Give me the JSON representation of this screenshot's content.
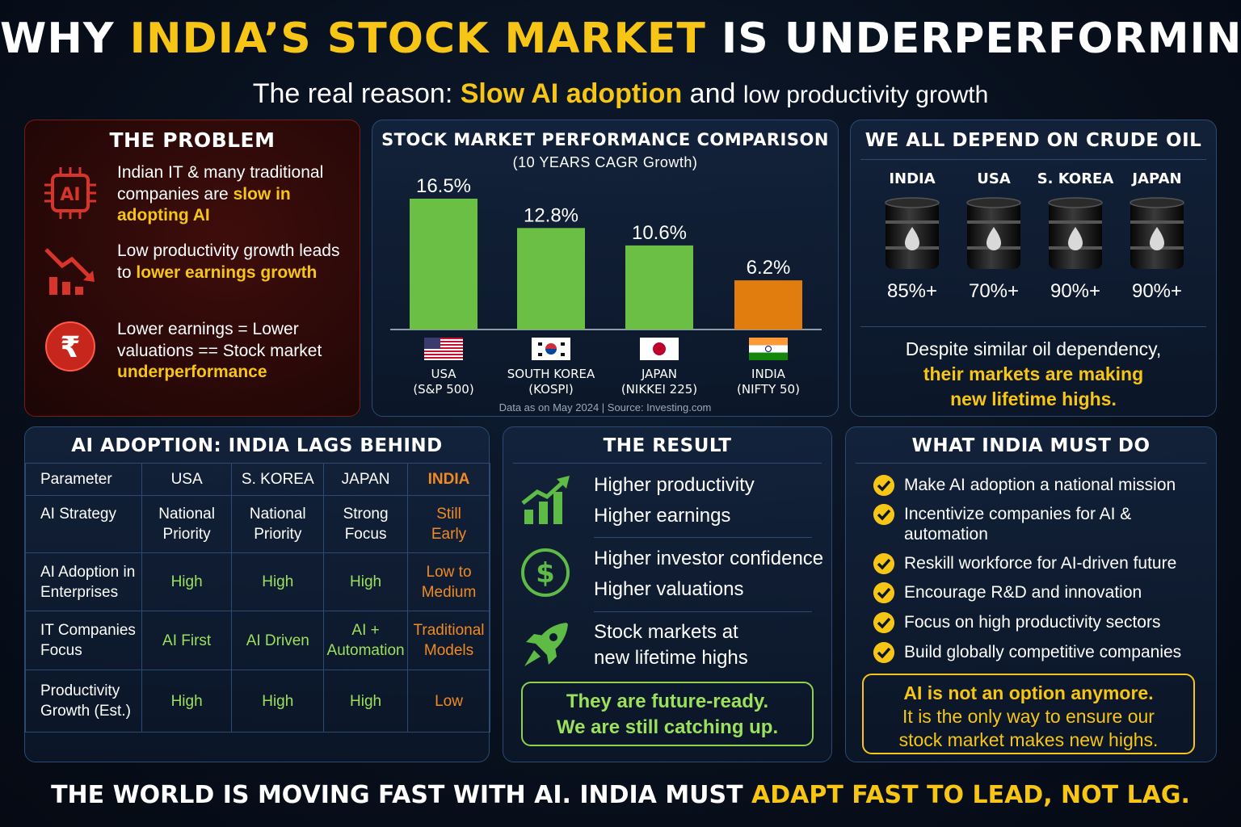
{
  "header": {
    "title_part1": "WHY ",
    "title_highlight": "INDIA’S STOCK MARKET",
    "title_part2": " IS UNDERPERFORMING?",
    "subtitle_part1": "The real reason: ",
    "subtitle_highlight": "Slow AI adoption",
    "subtitle_part2": " and ",
    "subtitle_part3": "low productivity growth"
  },
  "problem": {
    "title": "THE PROBLEM",
    "items": [
      {
        "icon": "ai-chip-icon",
        "text": "Indian IT & many traditional companies are ",
        "highlight": "slow in adopting AI"
      },
      {
        "icon": "declining-chart-icon",
        "text": "Low productivity growth leads to ",
        "highlight": "lower earnings growth"
      },
      {
        "icon": "rupee-icon",
        "text": "Lower earnings = Lower valuations == Stock market ",
        "highlight": "underperformance"
      }
    ]
  },
  "chart_data": {
    "type": "bar",
    "title": "STOCK MARKET PERFORMANCE COMPARISON",
    "subtitle": "(10 YEARS CAGR Growth)",
    "categories": [
      "USA",
      "SOUTH KOREA",
      "JAPAN",
      "INDIA"
    ],
    "category_sublabels": [
      "(S&P 500)",
      "(KOSPI)",
      "(NIKKEI 225)",
      "(NIFTY 50)"
    ],
    "values": [
      16.5,
      12.8,
      10.6,
      6.2
    ],
    "value_labels": [
      "16.5%",
      "12.8%",
      "10.6%",
      "6.2%"
    ],
    "bar_colors": [
      "#6cbf45",
      "#6cbf45",
      "#6cbf45",
      "#e07d0e"
    ],
    "flags": [
      "usa-flag-icon",
      "south-korea-flag-icon",
      "japan-flag-icon",
      "india-flag-icon"
    ],
    "ylim": [
      0,
      16.5
    ],
    "grid": false,
    "source": "Data as on May 2024 | Source: Investing.com"
  },
  "oil": {
    "title": "WE ALL DEPEND ON CRUDE OIL",
    "countries": [
      {
        "name": "INDIA",
        "value": "85%+"
      },
      {
        "name": "USA",
        "value": "70%+"
      },
      {
        "name": "S. KOREA",
        "value": "90%+"
      },
      {
        "name": "JAPAN",
        "value": "90%+"
      }
    ],
    "note_line1": "Despite similar oil dependency,",
    "note_highlight_line1": "their markets are making",
    "note_highlight_line2": "new lifetime highs."
  },
  "ai_table": {
    "title": "AI ADOPTION: INDIA LAGS BEHIND",
    "headers": [
      "Parameter",
      "USA",
      "S. KOREA",
      "JAPAN",
      "INDIA"
    ],
    "rows": [
      {
        "param": [
          "AI Strategy"
        ],
        "usa": [
          "National",
          "Priority"
        ],
        "korea": [
          "National",
          "Priority"
        ],
        "japan": [
          "Strong",
          "Focus"
        ],
        "india": [
          "Still",
          "Early"
        ]
      },
      {
        "param": [
          "AI Adoption in",
          "Enterprises"
        ],
        "usa": [
          "High"
        ],
        "korea": [
          "High"
        ],
        "japan": [
          "High"
        ],
        "india": [
          "Low to",
          "Medium"
        ]
      },
      {
        "param": [
          "IT Companies",
          "Focus"
        ],
        "usa": [
          "AI First"
        ],
        "korea": [
          "AI Driven"
        ],
        "japan": [
          "AI +",
          "Automation"
        ],
        "india": [
          "Traditional",
          "Models"
        ]
      },
      {
        "param": [
          "Productivity",
          "Growth (Est.)"
        ],
        "usa": [
          "High"
        ],
        "korea": [
          "High"
        ],
        "japan": [
          "High"
        ],
        "india": [
          "Low"
        ]
      }
    ]
  },
  "result": {
    "title": "THE RESULT",
    "items": [
      {
        "icon": "growth-chart-icon",
        "line1": "Higher productivity",
        "line2": "Higher earnings"
      },
      {
        "icon": "dollar-icon",
        "line1": "Higher investor confidence",
        "line2": "Higher valuations"
      },
      {
        "icon": "rocket-icon",
        "line1": "Stock markets at",
        "line2": "new lifetime highs"
      }
    ],
    "box_line1": "They are future-ready.",
    "box_line2": "We are still catching up."
  },
  "must_do": {
    "title": "WHAT INDIA MUST DO",
    "items": [
      [
        "Make AI adoption a national mission"
      ],
      [
        "Incentivize companies for AI &",
        "automation"
      ],
      [
        "Reskill workforce for AI-driven future"
      ],
      [
        "Encourage R&D and innovation"
      ],
      [
        "Focus on high productivity sectors"
      ],
      [
        "Build globally competitive companies"
      ]
    ],
    "box_line1": "AI is not an option anymore.",
    "box_line2": "It is the only way to ensure our",
    "box_line3": "stock market makes new highs."
  },
  "footer": {
    "part1": "THE WORLD IS MOVING FAST WITH AI. INDIA MUST ",
    "highlight": "ADAPT FAST TO LEAD, NOT LAG."
  },
  "colors": {
    "accent_yellow": "#f6c516",
    "india_orange": "#f08a24",
    "positive_green": "#9be15d",
    "bar_green": "#6cbf45",
    "bar_orange": "#e07d0e",
    "problem_red": "#d8352a"
  }
}
